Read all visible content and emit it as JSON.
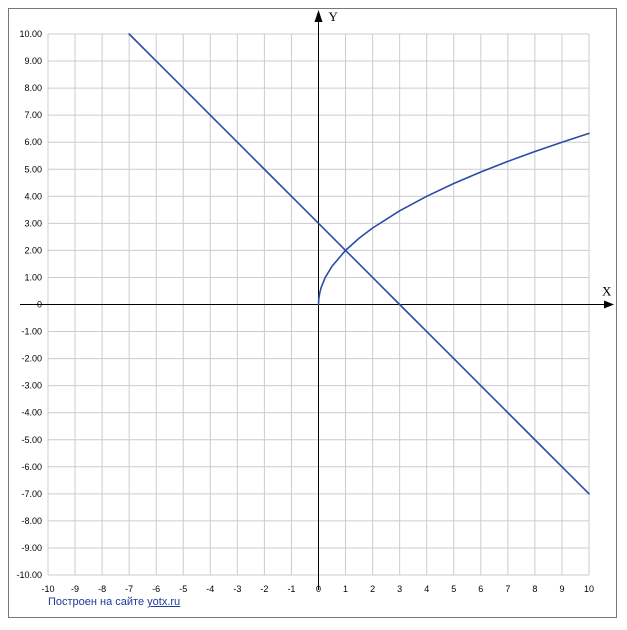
{
  "chart_data": {
    "type": "line",
    "title": "",
    "xlabel": "X",
    "ylabel": "Y",
    "xlim": [
      -10,
      10
    ],
    "ylim": [
      -10,
      10
    ],
    "grid": true,
    "x_ticks": [
      "-10",
      "-9",
      "-8",
      "-7",
      "-6",
      "-5",
      "-4",
      "-3",
      "-2",
      "-1",
      "0",
      "1",
      "2",
      "3",
      "4",
      "5",
      "6",
      "7",
      "8",
      "9",
      "10"
    ],
    "y_ticks": [
      "-10.00",
      "-9.00",
      "-8.00",
      "-7.00",
      "-6.00",
      "-5.00",
      "-4.00",
      "-3.00",
      "-2.00",
      "-1.00",
      "0",
      "1.00",
      "2.00",
      "3.00",
      "4.00",
      "5.00",
      "6.00",
      "7.00",
      "8.00",
      "9.00",
      "10.00"
    ],
    "series": [
      {
        "x": [
          -7,
          -6,
          -5,
          -4,
          -3,
          -2,
          -1,
          0,
          1,
          2,
          3,
          4,
          5,
          6,
          7,
          8,
          9,
          10
        ],
        "y": [
          10,
          9,
          8,
          7,
          6,
          5,
          4,
          3,
          2,
          1,
          0,
          -1,
          -2,
          -3,
          -4,
          -5,
          -6,
          -7
        ],
        "color": "#2b4ba8"
      },
      {
        "x": [
          0,
          0.01,
          0.05,
          0.1,
          0.25,
          0.5,
          1,
          1.5,
          2,
          3,
          4,
          5,
          6,
          7,
          8,
          9,
          10
        ],
        "y": [
          0,
          0.2,
          0.447,
          0.632,
          1.0,
          1.414,
          2.0,
          2.449,
          2.828,
          3.464,
          4.0,
          4.472,
          4.899,
          5.292,
          5.657,
          6.0,
          6.325
        ],
        "color": "#2b4ba8"
      }
    ],
    "grid_color": "#cccccc",
    "axis_color": "#000000"
  },
  "footer": {
    "text": "Построен на сайте",
    "link": "yotx.ru"
  }
}
